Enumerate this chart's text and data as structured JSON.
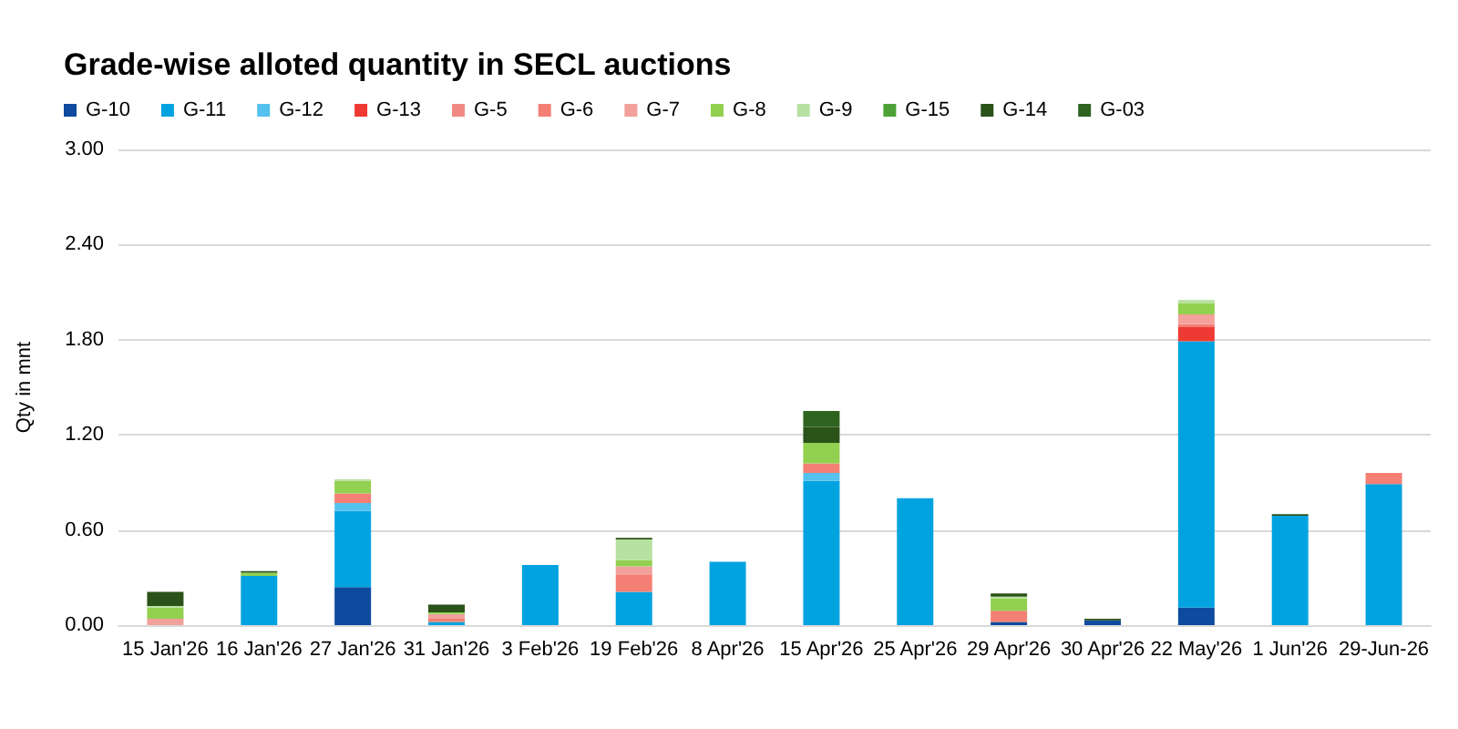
{
  "chart_data": {
    "type": "bar",
    "stacked": true,
    "title": "Grade-wise alloted quantity in SECL auctions",
    "ylabel": "Qty in mnt",
    "categories": [
      "15 Jan'26",
      "16 Jan'26",
      "27 Jan'26",
      "31 Jan'26",
      "3 Feb'26",
      "19 Feb'26",
      "8 Apr'26",
      "15 Apr'26",
      "25 Apr'26",
      "29 Apr'26",
      "30 Apr'26",
      "22 May'26",
      "1 Jun'26",
      "29-Jun-26"
    ],
    "series": [
      {
        "name": "G-10",
        "color": "#0e4b9e",
        "values": [
          null,
          null,
          0.24,
          null,
          null,
          null,
          null,
          null,
          null,
          0.02,
          0.03,
          0.11,
          null,
          null
        ]
      },
      {
        "name": "G-11",
        "color": "#00a3e0",
        "values": [
          null,
          0.31,
          0.48,
          0.02,
          0.38,
          0.21,
          0.4,
          0.91,
          0.8,
          null,
          null,
          1.68,
          0.69,
          0.89
        ]
      },
      {
        "name": "G-12",
        "color": "#55c1ee",
        "values": [
          null,
          null,
          0.05,
          null,
          null,
          null,
          null,
          0.05,
          null,
          null,
          null,
          null,
          null,
          null
        ]
      },
      {
        "name": "G-13",
        "color": "#ee3a33",
        "values": [
          null,
          null,
          null,
          null,
          null,
          null,
          null,
          null,
          null,
          null,
          null,
          0.09,
          null,
          null
        ]
      },
      {
        "name": "G-5",
        "color": "#f08a82",
        "values": [
          null,
          null,
          null,
          null,
          null,
          null,
          null,
          null,
          null,
          null,
          null,
          null,
          null,
          null
        ]
      },
      {
        "name": "G-6",
        "color": "#f47f74",
        "values": [
          null,
          null,
          0.06,
          0.02,
          null,
          0.11,
          null,
          0.06,
          null,
          0.07,
          null,
          0.02,
          null,
          0.07
        ]
      },
      {
        "name": "G-7",
        "color": "#f2a19b",
        "values": [
          0.04,
          null,
          null,
          0.03,
          null,
          0.05,
          null,
          null,
          null,
          null,
          null,
          0.06,
          null,
          null
        ]
      },
      {
        "name": "G-8",
        "color": "#92d050",
        "values": [
          0.07,
          0.02,
          0.08,
          0.01,
          null,
          0.04,
          null,
          0.13,
          null,
          0.08,
          null,
          0.07,
          null,
          null
        ]
      },
      {
        "name": "G-9",
        "color": "#b6e1a0",
        "values": [
          0.01,
          null,
          0.01,
          null,
          null,
          0.13,
          null,
          null,
          null,
          0.01,
          null,
          0.02,
          null,
          null
        ]
      },
      {
        "name": "G-15",
        "color": "#4ca236",
        "values": [
          null,
          null,
          null,
          null,
          null,
          null,
          null,
          null,
          null,
          null,
          null,
          null,
          null,
          null
        ]
      },
      {
        "name": "G-14",
        "color": "#2b5219",
        "values": [
          0.09,
          0.01,
          null,
          0.05,
          null,
          0.01,
          null,
          0.1,
          null,
          0.02,
          0.01,
          null,
          0.01,
          null
        ]
      },
      {
        "name": "G-03",
        "color": "#2f6320",
        "values": [
          null,
          null,
          null,
          null,
          null,
          null,
          null,
          0.1,
          null,
          null,
          null,
          null,
          null,
          null
        ]
      }
    ],
    "ylim": [
      0,
      3
    ],
    "yticks": [
      {
        "value": 0,
        "label": "0.00"
      },
      {
        "value": 0.6,
        "label": "0.60"
      },
      {
        "value": 1.2,
        "label": "1.20"
      },
      {
        "value": 1.8,
        "label": "1.80"
      },
      {
        "value": 2.4,
        "label": "2.40"
      },
      {
        "value": 3,
        "label": "3.00"
      }
    ],
    "grid": "y",
    "legend": "top left"
  }
}
